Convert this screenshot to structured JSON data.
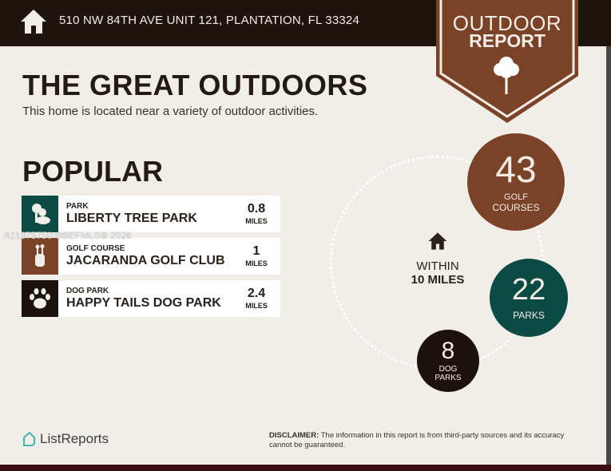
{
  "header": {
    "address": "510 NW 84TH AVE UNIT 121, PLANTATION, FL 33324",
    "icon": "home-icon"
  },
  "badge": {
    "line1": "OUTDOOR",
    "line2": "REPORT",
    "icon": "tree-icon"
  },
  "title": "THE GREAT OUTDOORS",
  "subtitle": "This home is located near a variety of outdoor activities.",
  "popular": {
    "heading": "POPULAR",
    "items": [
      {
        "category": "PARK",
        "name": "LIBERTY TREE PARK",
        "distance": "0.8",
        "unit": "MILES",
        "icon": "park-icon",
        "color": "#0c4a44"
      },
      {
        "category": "GOLF COURSE",
        "name": "JACARANDA GOLF CLUB",
        "distance": "1",
        "unit": "MILES",
        "icon": "golf-bag-icon",
        "color": "#7a4226"
      },
      {
        "category": "DOG PARK",
        "name": "HAPPY TAILS DOG PARK",
        "distance": "2.4",
        "unit": "MILES",
        "icon": "paw-icon",
        "color": "#1b120d"
      }
    ]
  },
  "watermark": "A11375750 ©SEFMLS® 2026",
  "radius": {
    "line1": "WITHIN",
    "line2": "10 MILES"
  },
  "counts": [
    {
      "number": "43",
      "label1": "GOLF",
      "label2": "COURSES"
    },
    {
      "number": "22",
      "label1": "PARKS"
    },
    {
      "number": "8",
      "label1": "DOG",
      "label2": "PARKS"
    }
  ],
  "footer": {
    "brand": "ListReports",
    "disclaimer_label": "DISCLAIMER:",
    "disclaimer": " The information in this report is from third-party sources and its accuracy cannot be guaranteed."
  }
}
